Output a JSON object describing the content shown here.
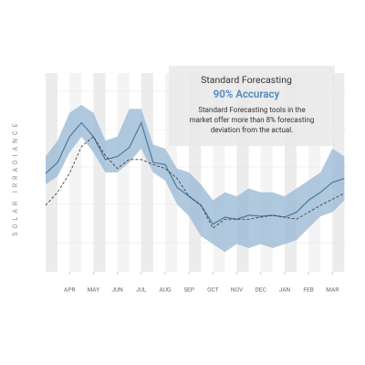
{
  "chart_data": {
    "type": "band-line",
    "y_label": "SOLAR IRRADIANCE",
    "annotation": {
      "title": "Standard Forecasting",
      "highlight": "90% Accuracy",
      "body": [
        "Standard Forecasting tools in the",
        "market offer more than 8% forecasting",
        "deviation from the actual."
      ]
    },
    "x": [
      0,
      0.5,
      1,
      1.5,
      2,
      2.5,
      3,
      3.5,
      4,
      4.5,
      5,
      5.5,
      6,
      6.5,
      7,
      7.5,
      8,
      8.5,
      9,
      9.5,
      10,
      10.5,
      11,
      11.5,
      12,
      12.5
    ],
    "xlim": [
      0,
      12.6
    ],
    "xticks": [
      {
        "value": 1,
        "label": "APR"
      },
      {
        "value": 2,
        "label": "MAY"
      },
      {
        "value": 3,
        "label": "JUN"
      },
      {
        "value": 4,
        "label": "JUL"
      },
      {
        "value": 5,
        "label": "AUG"
      },
      {
        "value": 6,
        "label": "SEP"
      },
      {
        "value": 7,
        "label": "OCT"
      },
      {
        "value": 8,
        "label": "NOV"
      },
      {
        "value": 9,
        "label": "DEC"
      },
      {
        "value": 10,
        "label": "JAN"
      },
      {
        "value": 11,
        "label": "FEB"
      },
      {
        "value": 12,
        "label": "MAR"
      }
    ],
    "ylim": [
      0,
      100
    ],
    "band": {
      "color": "#9dbcd6",
      "high": [
        58,
        66,
        80,
        84,
        80,
        66,
        68,
        82,
        82,
        64,
        62,
        52,
        50,
        44,
        36,
        40,
        38,
        42,
        40,
        40,
        38,
        42,
        46,
        50,
        62,
        58
      ],
      "low": [
        44,
        48,
        60,
        68,
        60,
        50,
        50,
        55,
        62,
        50,
        46,
        34,
        28,
        18,
        14,
        10,
        14,
        12,
        14,
        12,
        14,
        16,
        22,
        28,
        30,
        36
      ]
    },
    "series": [
      {
        "color": "#4a7aa0",
        "dash": false,
        "values": [
          49.5,
          55,
          68,
          75,
          68,
          56.5,
          58,
          62.5,
          75,
          55,
          54,
          42.5,
          38,
          33.5,
          24,
          27.5,
          26.5,
          28.5,
          28,
          28.5,
          27.5,
          30,
          36,
          40,
          45,
          47
        ]
      },
      {
        "color": "#333333",
        "dash": true,
        "values": [
          33.5,
          40,
          49.5,
          63,
          68,
          58.5,
          52,
          56.5,
          56.5,
          54,
          52,
          47,
          38,
          33.5,
          22,
          26.5,
          26.5,
          26.5,
          27.5,
          28.5,
          27.5,
          26.5,
          30,
          33.5,
          36.5,
          39.5
        ]
      }
    ]
  }
}
